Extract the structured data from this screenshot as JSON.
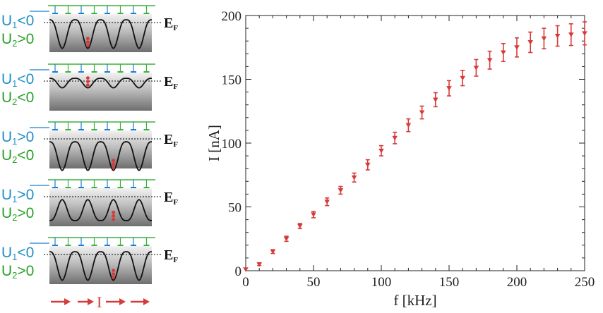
{
  "colors": {
    "u1": "#1f8fc8",
    "u2": "#2aa02a",
    "marker": "#d63a3a",
    "gate_line": "#3cb03c",
    "gate_blue": "#1b7fd0"
  },
  "panels": [
    {
      "u1": "U",
      "u1_sub": "1",
      "u1_sign": "<0",
      "u2": "U",
      "u2_sub": "2",
      "u2_sign": ">0",
      "ef": "E",
      "ef_sub": "F"
    },
    {
      "u1": "U",
      "u1_sub": "1",
      "u1_sign": "<0",
      "u2": "U",
      "u2_sub": "2",
      "u2_sign": "<0",
      "ef": "E",
      "ef_sub": "F"
    },
    {
      "u1": "U",
      "u1_sub": "1",
      "u1_sign": ">0",
      "u2": "U",
      "u2_sub": "2",
      "u2_sign": "<0",
      "ef": "E",
      "ef_sub": "F"
    },
    {
      "u1": "U",
      "u1_sub": "1",
      "u1_sign": ">0",
      "u2": "U",
      "u2_sub": "2",
      "u2_sign": ">0",
      "ef": "E",
      "ef_sub": "F"
    },
    {
      "u1": "U",
      "u1_sub": "1",
      "u1_sign": "<0",
      "u2": "U",
      "u2_sub": "2",
      "u2_sign": ">0",
      "ef": "E",
      "ef_sub": "F"
    }
  ],
  "current_label": "I",
  "chart_data": {
    "type": "scatter",
    "xlabel": "f [kHz]",
    "ylabel": "I [nA]",
    "xlim": [
      0,
      250
    ],
    "ylim": [
      0,
      200
    ],
    "xticks": [
      "0",
      "50",
      "100",
      "150",
      "200",
      "250"
    ],
    "yticks": [
      "0",
      "50",
      "100",
      "150",
      "200"
    ],
    "marker": "triangle-down",
    "x": [
      0,
      10,
      20,
      30,
      40,
      50,
      60,
      70,
      80,
      90,
      100,
      110,
      120,
      130,
      140,
      150,
      160,
      170,
      180,
      190,
      200,
      210,
      220,
      230,
      240,
      250
    ],
    "y": [
      1,
      5,
      15,
      25,
      35,
      44,
      54,
      63,
      73,
      83,
      94,
      104,
      114,
      124,
      134,
      143,
      151,
      159,
      165,
      171,
      175,
      179,
      182,
      184,
      185,
      186
    ],
    "err": [
      0.5,
      1,
      1.5,
      2,
      2,
      2.5,
      3,
      3,
      3.5,
      4,
      4,
      4.5,
      5,
      5,
      5.5,
      6,
      6,
      6.5,
      7,
      7,
      7.5,
      8,
      8,
      8,
      8.5,
      9
    ]
  }
}
